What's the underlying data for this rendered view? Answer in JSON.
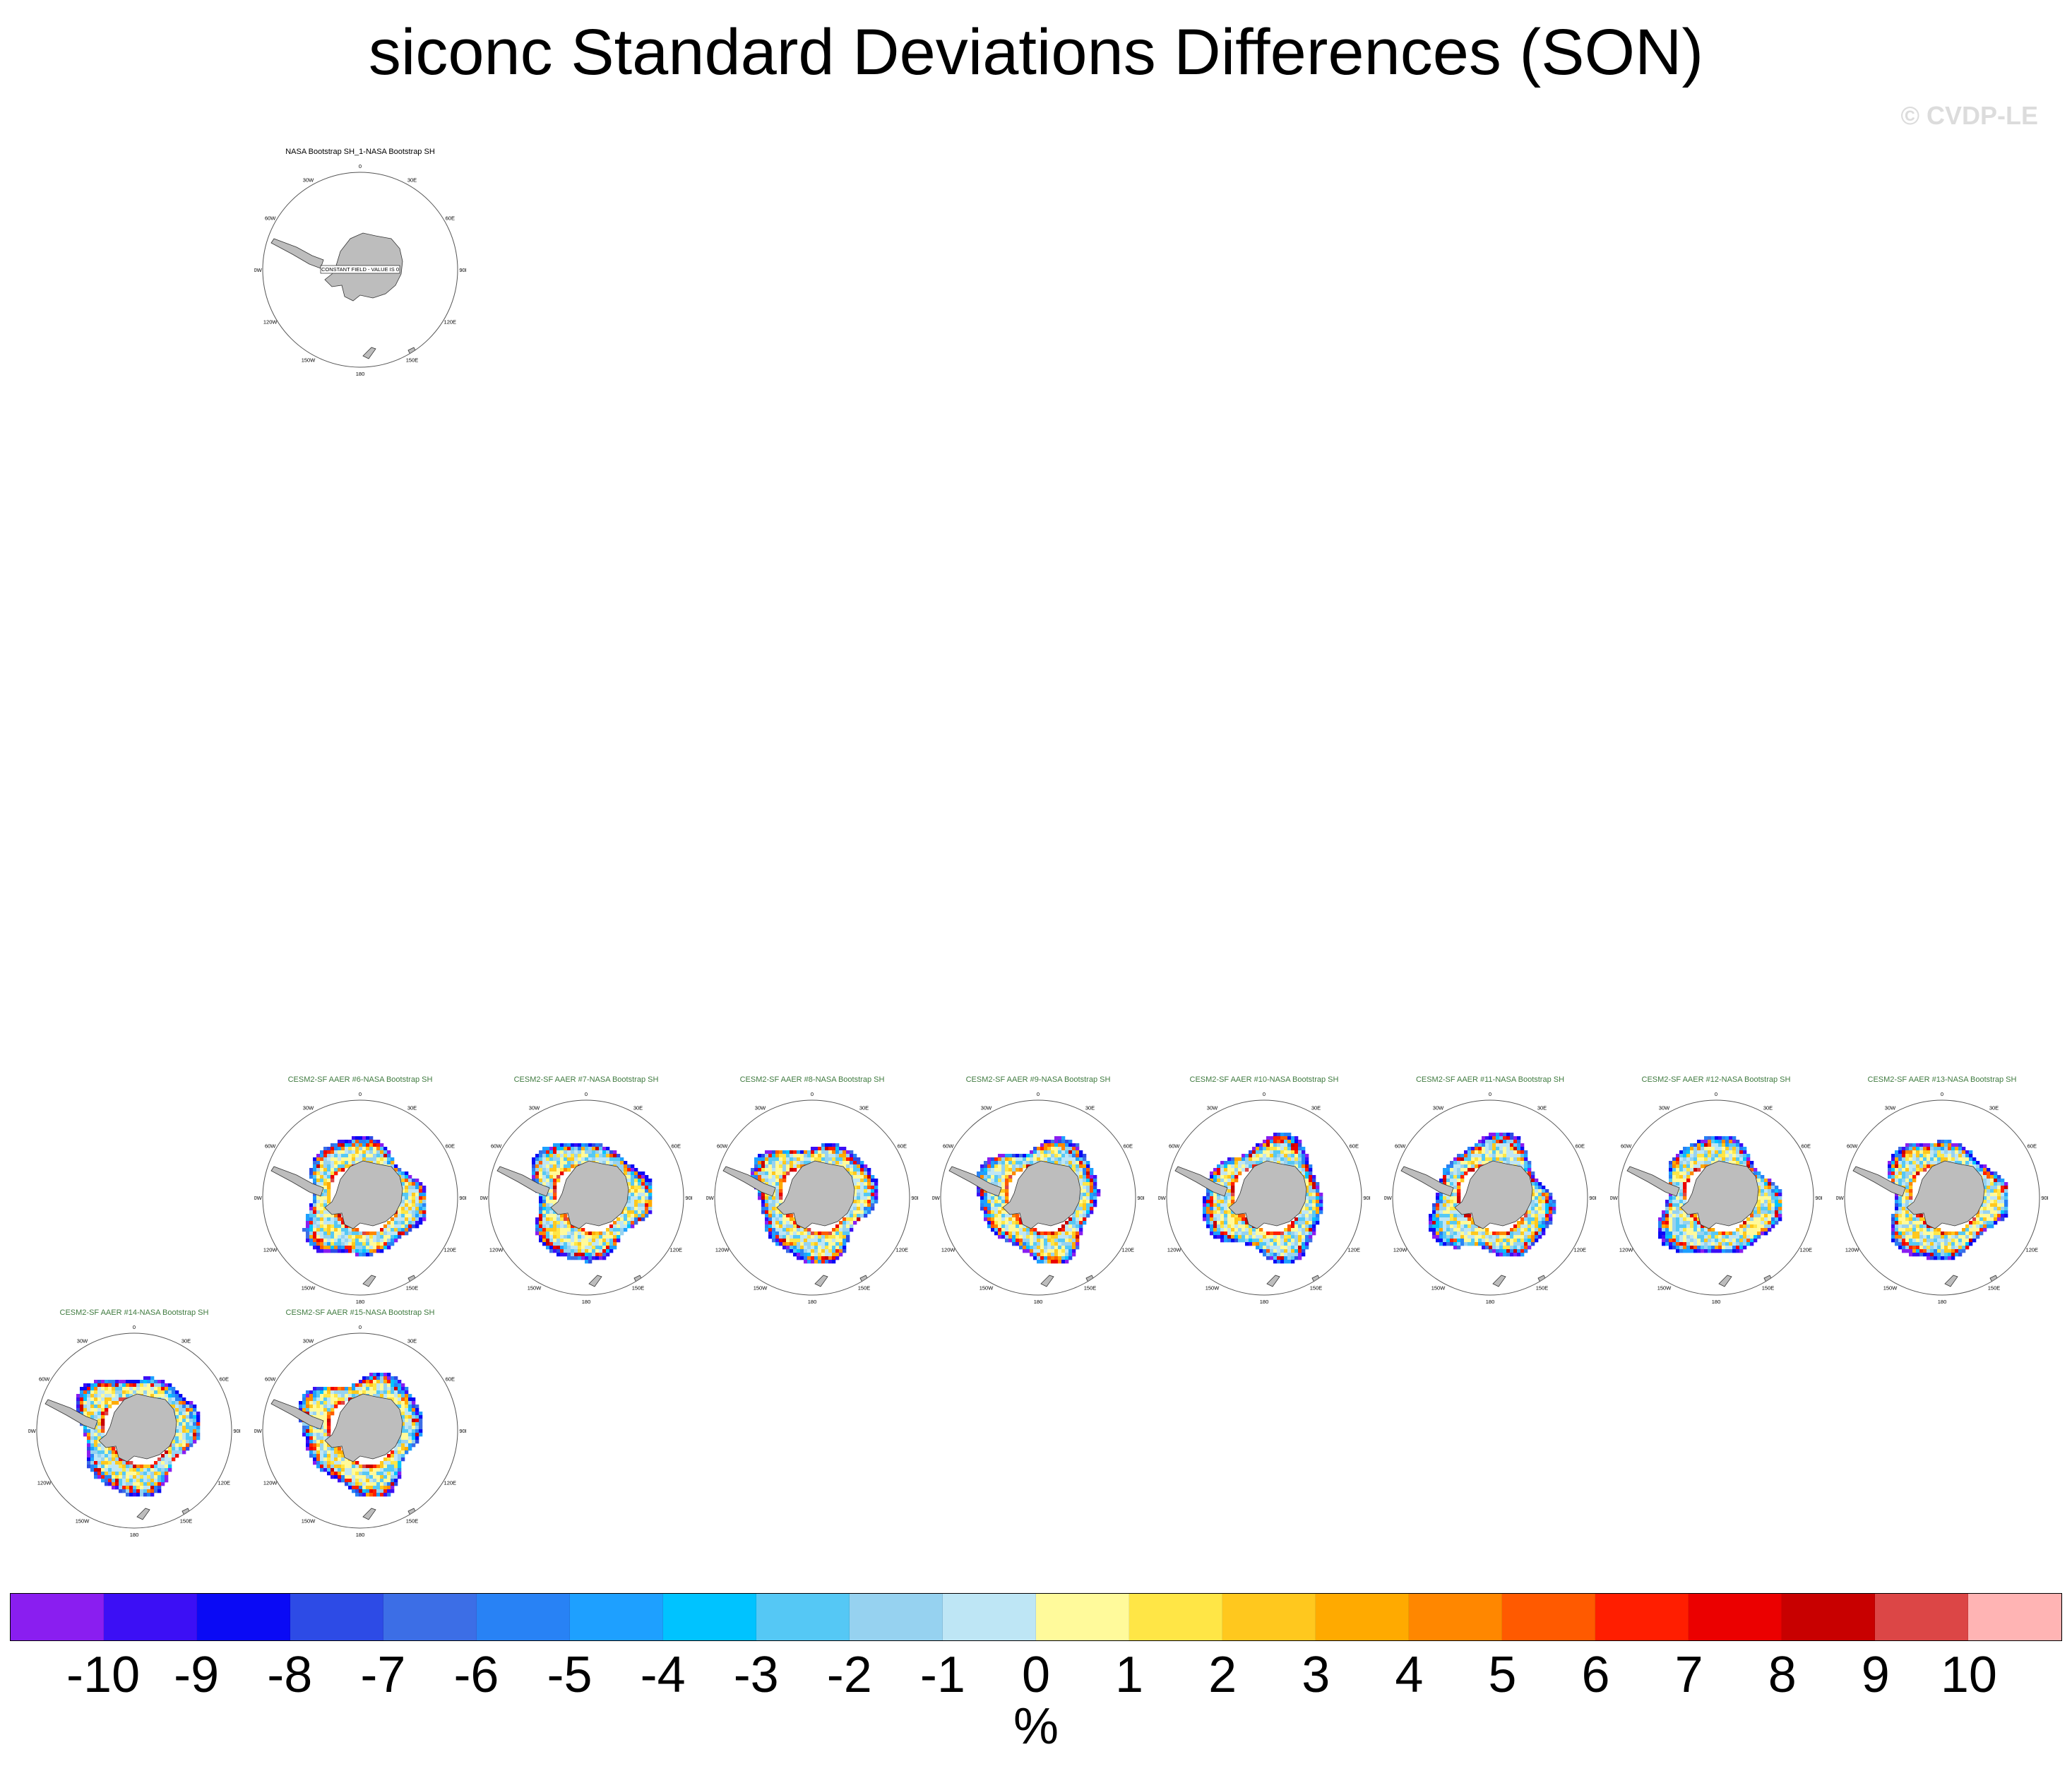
{
  "title": "siconc Standard Deviations Differences (SON)",
  "copyright": "© CVDP-LE",
  "panels": [
    {
      "title": "NASA Bootstrap SH_1-NASA Bootstrap SH",
      "kind": "obs",
      "note": "CONSTANT FIELD - VALUE IS 0"
    },
    {
      "title": "CESM2-SF AAER #6-NASA Bootstrap SH",
      "kind": "model"
    },
    {
      "title": "CESM2-SF AAER #7-NASA Bootstrap SH",
      "kind": "model"
    },
    {
      "title": "CESM2-SF AAER #8-NASA Bootstrap SH",
      "kind": "model"
    },
    {
      "title": "CESM2-SF AAER #9-NASA Bootstrap SH",
      "kind": "model"
    },
    {
      "title": "CESM2-SF AAER #10-NASA Bootstrap SH",
      "kind": "model"
    },
    {
      "title": "CESM2-SF AAER #11-NASA Bootstrap SH",
      "kind": "model"
    },
    {
      "title": "CESM2-SF AAER #12-NASA Bootstrap SH",
      "kind": "model"
    },
    {
      "title": "CESM2-SF AAER #13-NASA Bootstrap SH",
      "kind": "model"
    },
    {
      "title": "CESM2-SF AAER #14-NASA Bootstrap SH",
      "kind": "model"
    },
    {
      "title": "CESM2-SF AAER #15-NASA Bootstrap SH",
      "kind": "model"
    }
  ],
  "lon_labels": [
    "0",
    "30E",
    "60E",
    "90E",
    "120E",
    "150E",
    "180",
    "150W",
    "120W",
    "90W",
    "60W",
    "30W"
  ],
  "colorbar": {
    "colors": [
      "#8a1ef0",
      "#3c0ff5",
      "#0a0af5",
      "#2d4be6",
      "#3c6ee6",
      "#2882f5",
      "#1ea0ff",
      "#00c3ff",
      "#55c8f5",
      "#96d2f0",
      "#bee6f5",
      "#fffa9b",
      "#ffe646",
      "#ffc81e",
      "#ffaa00",
      "#ff8700",
      "#ff5a00",
      "#ff1e00",
      "#eb0000",
      "#c80000",
      "#dc4646",
      "#ffb4b4"
    ],
    "labels": [
      "-10",
      "-9",
      "-8",
      "-7",
      "-6",
      "-5",
      "-4",
      "-3",
      "-2",
      "-1",
      "0",
      "1",
      "2",
      "3",
      "4",
      "5",
      "6",
      "7",
      "8",
      "9",
      "10"
    ],
    "units": "%"
  }
}
